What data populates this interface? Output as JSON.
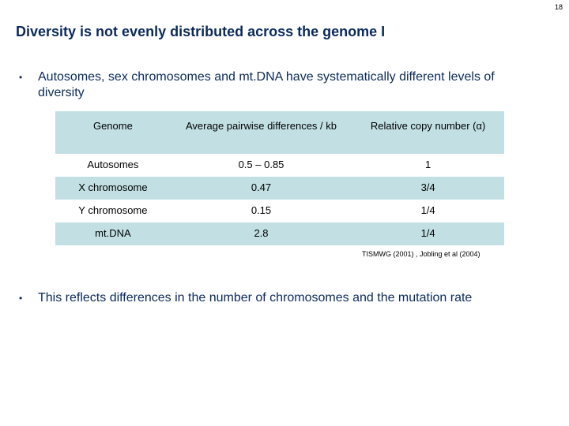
{
  "slide_number": "18",
  "title": "Diversity is not evenly distributed across the genome I",
  "bullets": [
    {
      "marker": "•",
      "text": "Autosomes, sex chromosomes and mt.DNA have systematically different levels of diversity"
    },
    {
      "marker": "•",
      "text": "This reflects differences in the number of chromosomes and the mutation rate"
    }
  ],
  "table": {
    "headers": [
      "Genome",
      "Average pairwise differences / kb",
      "Relative copy number (α)"
    ],
    "rows": [
      [
        "Autosomes",
        "0.5 – 0.85",
        "1"
      ],
      [
        "X chromosome",
        "0.47",
        "3/4"
      ],
      [
        "Y chromosome",
        "0.15",
        "1/4"
      ],
      [
        "mt.DNA",
        "2.8",
        "1/4"
      ]
    ]
  },
  "citation": "TISMWG (2001) , Jobling et al (2004)",
  "colors": {
    "title": "#0b2a5b",
    "table_shade": "#c2e0e4"
  }
}
